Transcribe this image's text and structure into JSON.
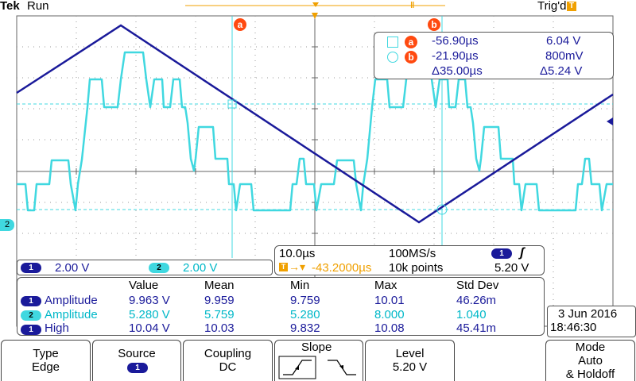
{
  "status": {
    "brand": "Tek",
    "run_state": "Run",
    "trigger_state": "Trig'd"
  },
  "cursor_labels": {
    "a": "a",
    "b": "b"
  },
  "cursor_readout": {
    "a_time": "-56.90µs",
    "a_volt": "6.04 V",
    "b_time": "-21.90µs",
    "b_volt": "800mV",
    "delta_time": "Δ35.00µs",
    "delta_volt": "Δ5.24 V"
  },
  "channels": [
    {
      "num": "1",
      "scale": "2.00 V",
      "color": "#1a1a9a"
    },
    {
      "num": "2",
      "scale": "2.00 V",
      "color": "#40d8e0"
    }
  ],
  "horizontal": {
    "time_div": "10.0µs",
    "sample_rate": "100MS/s",
    "position": "-43.2000µs",
    "record_length": "10k points",
    "trig_source": "1",
    "trig_level": "5.20 V",
    "slope_glyph": "ʃ"
  },
  "measurements": {
    "headers": [
      "Value",
      "Mean",
      "Min",
      "Max",
      "Std Dev"
    ],
    "rows": [
      {
        "ch": "1",
        "name": "Amplitude",
        "value": "9.963 V",
        "mean": "9.959",
        "min": "9.759",
        "max": "10.01",
        "std": "46.26m"
      },
      {
        "ch": "2",
        "name": "Amplitude",
        "value": "5.280 V",
        "mean": "5.759",
        "min": "5.280",
        "max": "8.000",
        "std": "1.040"
      },
      {
        "ch": "1",
        "name": "High",
        "value": "10.04 V",
        "mean": "10.03",
        "min": "9.832",
        "max": "10.08",
        "std": "45.41m"
      }
    ]
  },
  "datetime": {
    "date": "3 Jun 2016",
    "time": "18:46:30"
  },
  "menu": {
    "type": {
      "title": "Type",
      "value": "Edge"
    },
    "source": {
      "title": "Source",
      "value": "1"
    },
    "coupling": {
      "title": "Coupling",
      "value": "DC"
    },
    "slope": {
      "title": "Slope"
    },
    "level": {
      "title": "Level",
      "value": "5.20 V"
    },
    "mode": {
      "title": "Mode",
      "value1": "Auto",
      "value2": "& Holdoff"
    }
  },
  "markers": {
    "ch2_ground": "2",
    "trig_marker": "T",
    "trig_level_marker": "T"
  },
  "colors": {
    "ch1": "#1a1a9a",
    "ch2": "#40d8e0",
    "cursor": "#40d8e0",
    "orange": "#f0a000"
  }
}
